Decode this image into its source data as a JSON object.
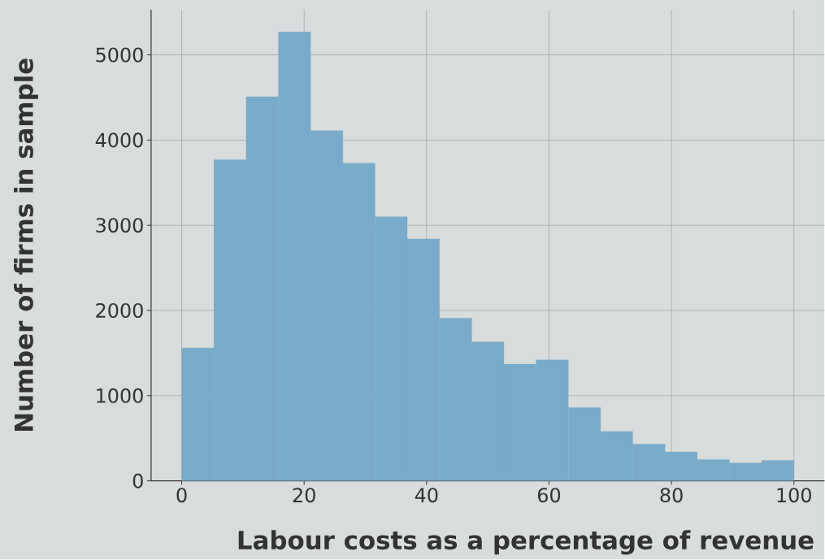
{
  "chart_data": {
    "type": "histogram",
    "xlabel": "Labour costs as a percentage of revenue",
    "ylabel": "Number of firms in sample",
    "bins": [
      0,
      5.26,
      10.53,
      15.79,
      21.05,
      26.32,
      31.58,
      36.84,
      42.11,
      47.37,
      52.63,
      57.89,
      63.16,
      68.42,
      73.68,
      78.95,
      84.21,
      89.47,
      94.74,
      100
    ],
    "values": [
      1560,
      3770,
      4510,
      5270,
      4110,
      3730,
      3100,
      2840,
      1910,
      1630,
      1370,
      1420,
      860,
      580,
      430,
      340,
      250,
      210,
      240
    ],
    "color": "#7aaac9",
    "xlim": [
      -5,
      105
    ],
    "ylim": [
      0,
      5530
    ],
    "xticks": [
      0,
      20,
      40,
      60,
      80,
      100
    ],
    "yticks": [
      0,
      1000,
      2000,
      3000,
      4000,
      5000
    ],
    "grid": true
  }
}
